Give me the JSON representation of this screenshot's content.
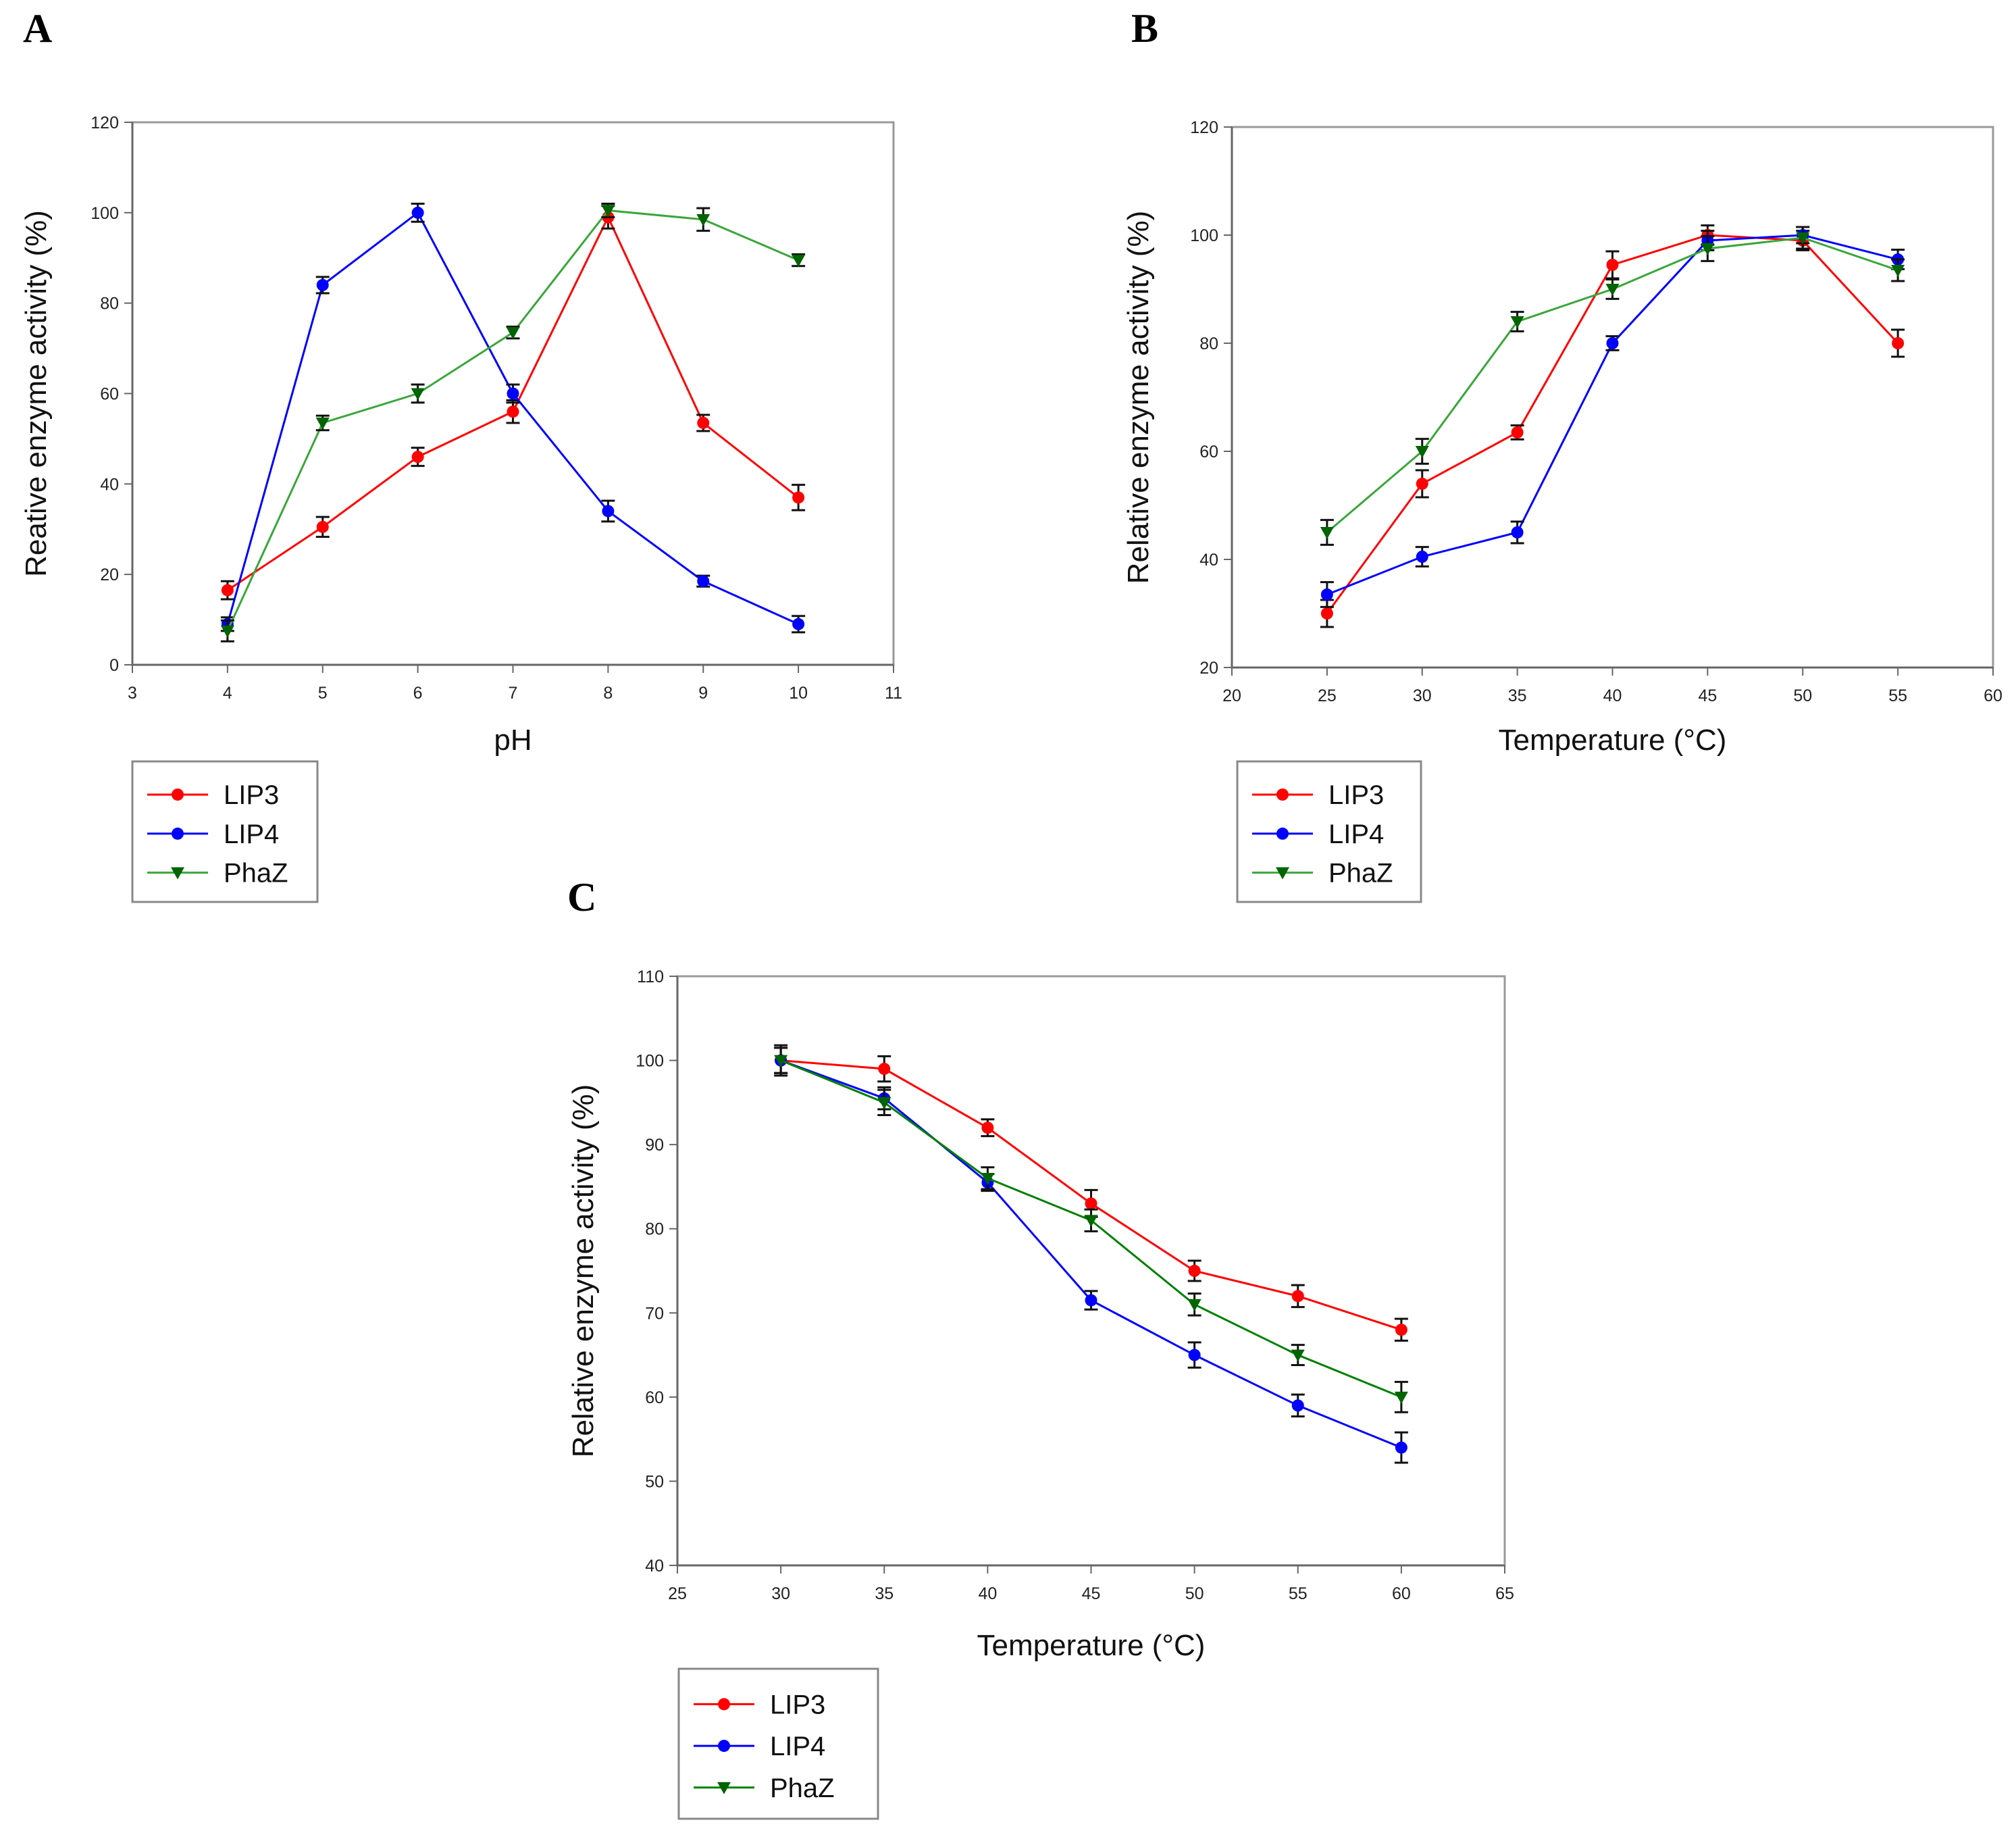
{
  "chart_data": [
    {
      "panel": "A",
      "type": "line",
      "xlabel": "pH",
      "ylabel": "Reative enzyme activity (%)",
      "xlim": [
        3,
        11
      ],
      "ylim": [
        0,
        120
      ],
      "xticks": [
        3,
        4,
        5,
        6,
        7,
        8,
        9,
        10,
        11
      ],
      "yticks": [
        0,
        20,
        40,
        60,
        80,
        100,
        120
      ],
      "x": [
        4,
        5,
        6,
        7,
        8,
        9,
        10
      ],
      "legend_position": "bottom-left below plot",
      "series": [
        {
          "name": "LIP3",
          "color": "#ff0000",
          "marker": "circle",
          "values": [
            16.5,
            30.5,
            46,
            56,
            99,
            53.5,
            37
          ],
          "err": [
            2,
            2.2,
            2,
            2.5,
            2.5,
            1.8,
            2.8
          ]
        },
        {
          "name": "LIP4",
          "color": "#0000ff",
          "marker": "circle",
          "values": [
            9,
            84,
            100,
            60,
            34,
            18.5,
            9
          ],
          "err": [
            1.5,
            1.8,
            2,
            2,
            2.3,
            1.2,
            1.8
          ]
        },
        {
          "name": "PhaZ",
          "color": "#3aa63a",
          "marker": "triangle-down",
          "values": [
            7.5,
            53.5,
            60,
            73.5,
            100.5,
            98.5,
            89.5
          ],
          "err": [
            2.3,
            1.6,
            2,
            1.3,
            1.5,
            2.5,
            1.3
          ]
        }
      ]
    },
    {
      "panel": "B",
      "type": "line",
      "xlabel": "Temperature (°C)",
      "ylabel": "Relative enzyme activity (%)",
      "xlim": [
        20,
        60
      ],
      "ylim": [
        20,
        120
      ],
      "xticks": [
        20,
        25,
        30,
        35,
        40,
        45,
        50,
        55,
        60
      ],
      "yticks": [
        20,
        40,
        60,
        80,
        100,
        120
      ],
      "x": [
        25,
        30,
        35,
        40,
        45,
        50,
        55
      ],
      "legend_position": "bottom-left below plot",
      "series": [
        {
          "name": "LIP3",
          "color": "#ff0000",
          "marker": "circle",
          "values": [
            30,
            54,
            63.5,
            94.5,
            100,
            99,
            80
          ],
          "err": [
            2.5,
            2.5,
            1.3,
            2.5,
            1.8,
            1.8,
            2.5
          ]
        },
        {
          "name": "LIP4",
          "color": "#0000ff",
          "marker": "circle",
          "values": [
            33.5,
            40.5,
            45,
            80,
            99,
            100,
            95.5
          ],
          "err": [
            2.3,
            1.8,
            2,
            1.3,
            1.8,
            1.5,
            1.8
          ]
        },
        {
          "name": "PhaZ",
          "color": "#3aa63a",
          "marker": "triangle-down",
          "values": [
            45,
            60,
            84,
            90,
            97.5,
            99.5,
            93.5
          ],
          "err": [
            2.3,
            2.3,
            1.8,
            1.8,
            2.3,
            2,
            2
          ]
        }
      ]
    },
    {
      "panel": "C",
      "type": "line",
      "xlabel": "Temperature (°C)",
      "ylabel": "Relative enzyme activity (%)",
      "xlim": [
        25,
        65
      ],
      "ylim": [
        40,
        110
      ],
      "xticks": [
        25,
        30,
        35,
        40,
        45,
        50,
        55,
        60,
        65
      ],
      "yticks": [
        40,
        50,
        60,
        70,
        80,
        90,
        100,
        110
      ],
      "x": [
        30,
        35,
        40,
        45,
        50,
        55,
        60
      ],
      "legend_position": "bottom-left below plot",
      "series": [
        {
          "name": "LIP3",
          "color": "#ff0000",
          "marker": "circle",
          "values": [
            100,
            99,
            92,
            83,
            75,
            72,
            68
          ],
          "err": [
            1.8,
            1.5,
            1,
            1.6,
            1.2,
            1.3,
            1.3
          ]
        },
        {
          "name": "LIP4",
          "color": "#0000ff",
          "marker": "circle",
          "values": [
            100,
            95.5,
            85.5,
            71.5,
            65,
            59,
            54
          ],
          "err": [
            1.5,
            1.3,
            1,
            1.1,
            1.5,
            1.3,
            1.8
          ]
        },
        {
          "name": "PhaZ",
          "color": "#008000",
          "marker": "triangle-down",
          "values": [
            100,
            95,
            86,
            81,
            71,
            65,
            60
          ],
          "err": [
            1.5,
            1.5,
            1.3,
            1.3,
            1.3,
            1.2,
            1.8
          ]
        }
      ]
    }
  ]
}
